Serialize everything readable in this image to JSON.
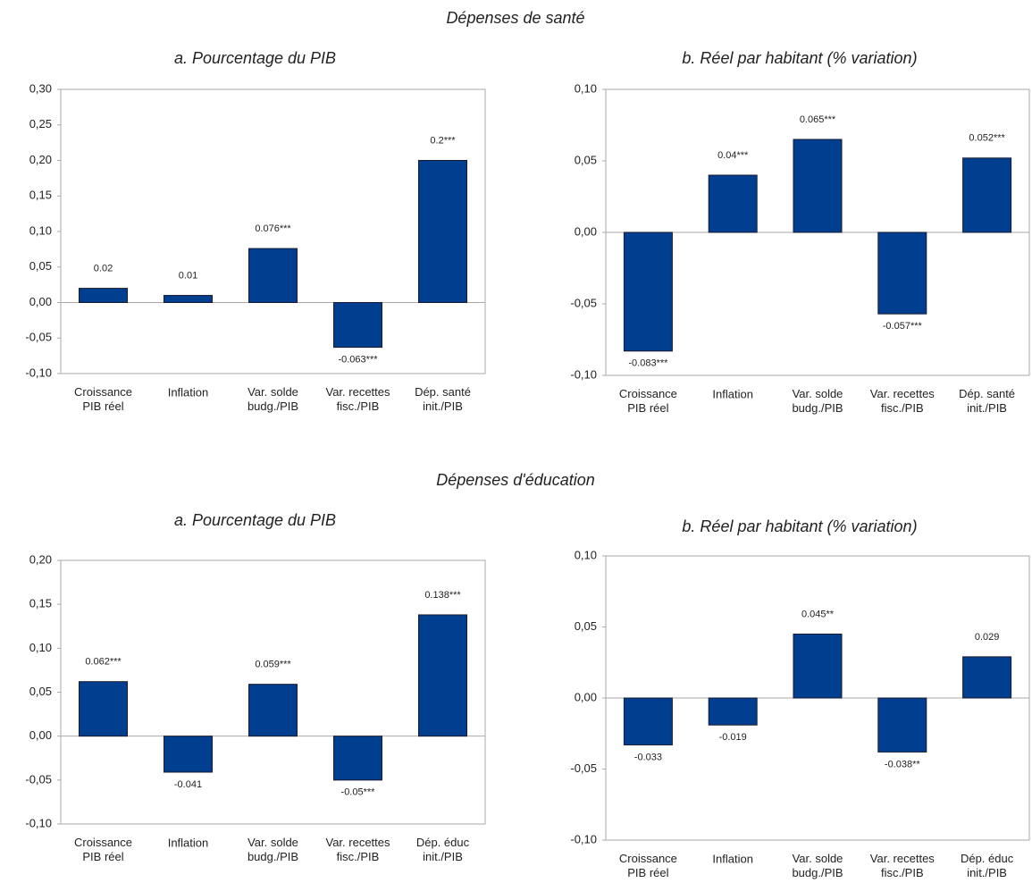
{
  "sections": [
    "Dépenses de santé",
    "Dépenses d'éducation"
  ],
  "chart_data": [
    {
      "type": "bar",
      "title": "a. Pourcentage du PIB",
      "color": "#003f8f",
      "categories": [
        "Croissance\nPIB réel",
        "Inflation",
        "Var. solde\nbudg./PIB",
        "Var. recettes\nfisc./PIB",
        "Dép. santé\ninit./PIB"
      ],
      "values": [
        0.02,
        0.01,
        0.076,
        -0.063,
        0.2
      ],
      "value_labels": [
        "0.02",
        "0.01",
        "0.076***",
        "-0.063***",
        "0.2***"
      ],
      "ylim": [
        -0.1,
        0.3
      ],
      "yticks": [
        {
          "value": -0.1,
          "label": "-0,10"
        },
        {
          "value": -0.05,
          "label": "-0,05"
        },
        {
          "value": 0,
          "label": "0,00"
        },
        {
          "value": 0.05,
          "label": "0,05"
        },
        {
          "value": 0.1,
          "label": "0,10"
        },
        {
          "value": 0.15,
          "label": "0,15"
        },
        {
          "value": 0.2,
          "label": "0,20"
        },
        {
          "value": 0.25,
          "label": "0,25"
        },
        {
          "value": 0.3,
          "label": "0,30"
        }
      ]
    },
    {
      "type": "bar",
      "title": "b. Réel par habitant (% variation)",
      "color": "#003f8f",
      "categories": [
        "Croissance\nPIB réel",
        "Inflation",
        "Var. solde\nbudg./PIB",
        "Var. recettes\nfisc./PIB",
        "Dép. santé\ninit./PIB"
      ],
      "values": [
        -0.083,
        0.04,
        0.065,
        -0.057,
        0.052
      ],
      "value_labels": [
        "-0.083***",
        "0.04***",
        "0.065***",
        "-0.057***",
        "0.052***"
      ],
      "ylim": [
        -0.1,
        0.1
      ],
      "yticks": [
        {
          "value": -0.1,
          "label": "-0,10"
        },
        {
          "value": -0.05,
          "label": "-0,05"
        },
        {
          "value": 0,
          "label": "0,00"
        },
        {
          "value": 0.05,
          "label": "0,05"
        },
        {
          "value": 0.1,
          "label": "0,10"
        }
      ]
    },
    {
      "type": "bar",
      "title": "a. Pourcentage du PIB",
      "color": "#003f8f",
      "categories": [
        "Croissance\nPIB réel",
        "Inflation",
        "Var. solde\nbudg./PIB",
        "Var. recettes\nfisc./PIB",
        "Dép. éduc\ninit./PIB"
      ],
      "values": [
        0.062,
        -0.041,
        0.059,
        -0.05,
        0.138
      ],
      "value_labels": [
        "0.062***",
        "-0.041",
        "0.059***",
        "-0.05***",
        "0.138***"
      ],
      "ylim": [
        -0.1,
        0.2
      ],
      "yticks": [
        {
          "value": -0.1,
          "label": "-0,10"
        },
        {
          "value": -0.05,
          "label": "-0,05"
        },
        {
          "value": 0,
          "label": "0,00"
        },
        {
          "value": 0.05,
          "label": "0,05"
        },
        {
          "value": 0.1,
          "label": "0,10"
        },
        {
          "value": 0.15,
          "label": "0,15"
        },
        {
          "value": 0.2,
          "label": "0,20"
        }
      ]
    },
    {
      "type": "bar",
      "title": "b. Réel par habitant (% variation)",
      "color": "#003f8f",
      "categories": [
        "Croissance\nPIB réel",
        "Inflation",
        "Var. solde\nbudg./PIB",
        "Var. recettes\nfisc./PIB",
        "Dép. éduc\ninit./PIB"
      ],
      "values": [
        -0.033,
        -0.019,
        0.045,
        -0.038,
        0.029
      ],
      "value_labels": [
        "-0.033",
        "-0.019",
        "0.045**",
        "-0.038**",
        "0.029"
      ],
      "ylim": [
        -0.1,
        0.1
      ],
      "yticks": [
        {
          "value": -0.1,
          "label": "-0,10"
        },
        {
          "value": -0.05,
          "label": "-0,05"
        },
        {
          "value": 0,
          "label": "0,00"
        },
        {
          "value": 0.05,
          "label": "0,05"
        },
        {
          "value": 0.1,
          "label": "0,10"
        }
      ]
    }
  ]
}
